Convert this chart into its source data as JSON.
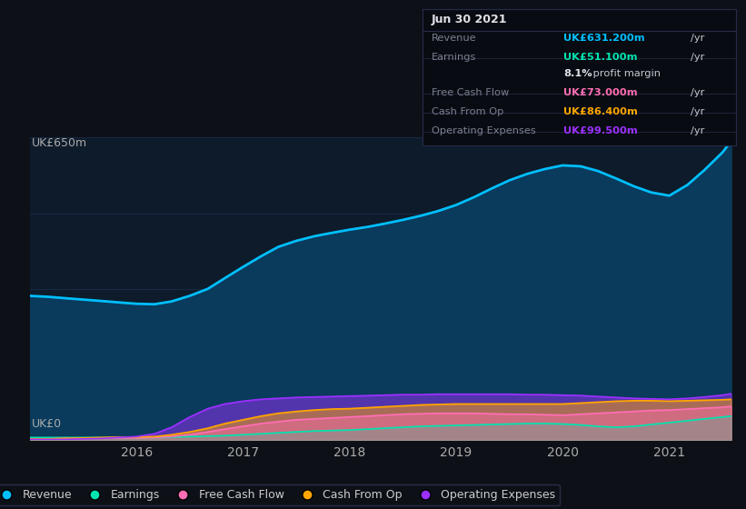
{
  "bg_color": "#0d1117",
  "plot_bg_color": "#0d1b2a",
  "grid_color": "#1e3050",
  "ylabel_top": "UK£650m",
  "ylabel_bottom": "UK£0",
  "x_years": [
    2015.0,
    2015.17,
    2015.33,
    2015.5,
    2015.67,
    2015.83,
    2016.0,
    2016.17,
    2016.33,
    2016.5,
    2016.67,
    2016.83,
    2017.0,
    2017.17,
    2017.33,
    2017.5,
    2017.67,
    2017.83,
    2018.0,
    2018.17,
    2018.33,
    2018.5,
    2018.67,
    2018.83,
    2019.0,
    2019.17,
    2019.33,
    2019.5,
    2019.67,
    2019.83,
    2020.0,
    2020.17,
    2020.33,
    2020.5,
    2020.67,
    2020.83,
    2021.0,
    2021.17,
    2021.33,
    2021.5,
    2021.58
  ],
  "revenue": [
    310,
    308,
    305,
    302,
    299,
    296,
    293,
    292,
    298,
    310,
    325,
    348,
    372,
    395,
    415,
    428,
    438,
    445,
    452,
    458,
    465,
    473,
    482,
    492,
    505,
    522,
    540,
    558,
    572,
    582,
    590,
    588,
    578,
    562,
    545,
    532,
    525,
    548,
    580,
    618,
    642
  ],
  "earnings": [
    6,
    6,
    6,
    6,
    6,
    6,
    6,
    6,
    7,
    8,
    9,
    10,
    12,
    14,
    16,
    18,
    20,
    21,
    22,
    24,
    26,
    28,
    30,
    31,
    32,
    33,
    34,
    35,
    36,
    36,
    35,
    33,
    30,
    28,
    30,
    34,
    38,
    42,
    46,
    50,
    52
  ],
  "free_cash_flow": [
    3,
    3,
    4,
    4,
    5,
    5,
    5,
    6,
    8,
    12,
    18,
    24,
    30,
    36,
    40,
    44,
    46,
    48,
    50,
    52,
    54,
    56,
    57,
    58,
    58,
    58,
    57,
    56,
    56,
    55,
    54,
    56,
    58,
    60,
    62,
    64,
    65,
    67,
    69,
    71,
    73
  ],
  "cash_from_op": [
    3,
    3,
    4,
    5,
    6,
    7,
    7,
    8,
    12,
    18,
    26,
    36,
    44,
    52,
    58,
    62,
    65,
    67,
    68,
    70,
    72,
    74,
    76,
    77,
    78,
    78,
    78,
    78,
    78,
    78,
    78,
    80,
    82,
    84,
    85,
    85,
    84,
    85,
    86,
    87,
    88
  ],
  "operating_expenses": [
    2,
    2,
    2,
    3,
    4,
    6,
    8,
    14,
    28,
    50,
    68,
    78,
    84,
    88,
    90,
    92,
    93,
    94,
    95,
    96,
    97,
    98,
    98,
    99,
    99,
    99,
    99,
    99,
    98,
    98,
    97,
    96,
    94,
    92,
    90,
    89,
    88,
    90,
    93,
    97,
    100
  ],
  "revenue_color": "#00bfff",
  "earnings_color": "#00e5b0",
  "free_cash_flow_color": "#ff6eb4",
  "cash_from_op_color": "#ffa500",
  "operating_expenses_color": "#9b30ff",
  "revenue_fill": "#0a3a5c",
  "legend_labels": [
    "Revenue",
    "Earnings",
    "Free Cash Flow",
    "Cash From Op",
    "Operating Expenses"
  ],
  "legend_colors": [
    "#00bfff",
    "#00e5b0",
    "#ff6eb4",
    "#ffa500",
    "#9b30ff"
  ],
  "xtick_labels": [
    "2016",
    "2017",
    "2018",
    "2019",
    "2020",
    "2021"
  ],
  "xtick_positions": [
    2016,
    2017,
    2018,
    2019,
    2020,
    2021
  ],
  "ylim": [
    0,
    650
  ],
  "info_title": "Jun 30 2021",
  "info_rows": [
    {
      "label": "Revenue",
      "value": "UK£631.200m",
      "color": "#00bfff"
    },
    {
      "label": "Earnings",
      "value": "UK£51.100m",
      "color": "#00e5b0"
    },
    {
      "label": "",
      "value": "8.1% profit margin",
      "color": "#dddddd"
    },
    {
      "label": "Free Cash Flow",
      "value": "UK£73.000m",
      "color": "#ff6eb4"
    },
    {
      "label": "Cash From Op",
      "value": "UK£86.400m",
      "color": "#ffa500"
    },
    {
      "label": "Operating Expenses",
      "value": "UK£99.500m",
      "color": "#9b30ff"
    }
  ]
}
